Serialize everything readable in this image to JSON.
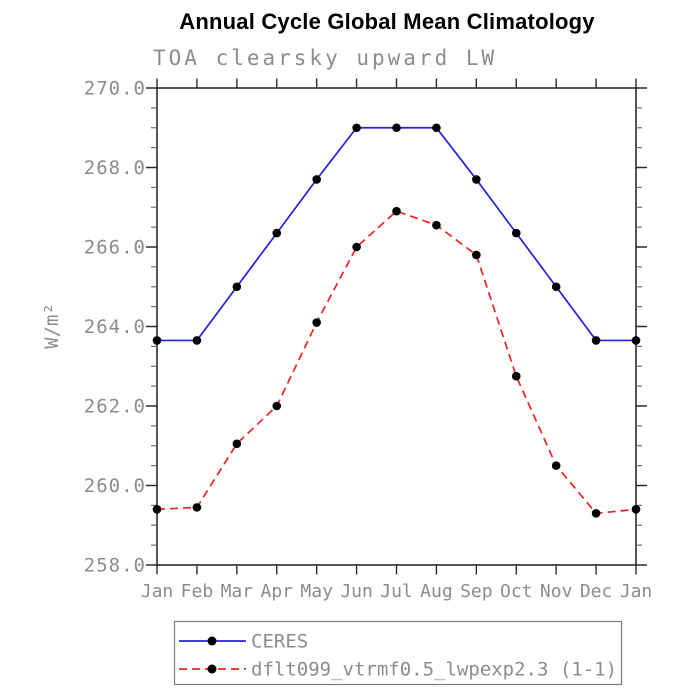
{
  "figure": {
    "title": "Annual Cycle Global Mean Climatology",
    "subtitle": "TOA clearsky upward LW"
  },
  "chart_data": {
    "type": "line",
    "title": "Annual Cycle Global Mean Climatology",
    "subtitle": "TOA clearsky upward LW",
    "xlabel": "",
    "ylabel": "W/m²",
    "categories": [
      "Jan",
      "Feb",
      "Mar",
      "Apr",
      "May",
      "Jun",
      "Jul",
      "Aug",
      "Sep",
      "Oct",
      "Nov",
      "Dec",
      "Jan"
    ],
    "ylim": [
      258.0,
      270.0
    ],
    "ytick_major_interval": 2.0,
    "ytick_minor_interval": 0.5,
    "ytick_labels": [
      "258.0",
      "260.0",
      "262.0",
      "264.0",
      "266.0",
      "268.0",
      "270.0"
    ],
    "grid": false,
    "legend_position": "bottom",
    "series": [
      {
        "name": "CERES",
        "color": "#2222dd",
        "line_style": "solid",
        "marker": "filled-circle",
        "marker_color": "#000000",
        "values": [
          263.65,
          263.65,
          265.0,
          266.35,
          267.7,
          269.0,
          269.0,
          269.0,
          267.7,
          266.35,
          265.0,
          263.65,
          263.65
        ]
      },
      {
        "name": "dflt099_vtrmf0.5_lwpexp2.3 (1-1)",
        "color": "#ee2222",
        "line_style": "dashed",
        "marker": "filled-circle",
        "marker_color": "#000000",
        "values": [
          259.4,
          259.45,
          261.05,
          262.0,
          264.1,
          266.0,
          266.9,
          266.55,
          265.8,
          262.75,
          260.5,
          259.3,
          259.4
        ]
      }
    ]
  },
  "colors": {
    "axis": "#2b2b2b",
    "minor_tick": "#6f6f6f",
    "tick_label": "#8c8c8c",
    "title": "#000000",
    "background": "#ffffff",
    "legend_border": "#7a7a7a"
  }
}
